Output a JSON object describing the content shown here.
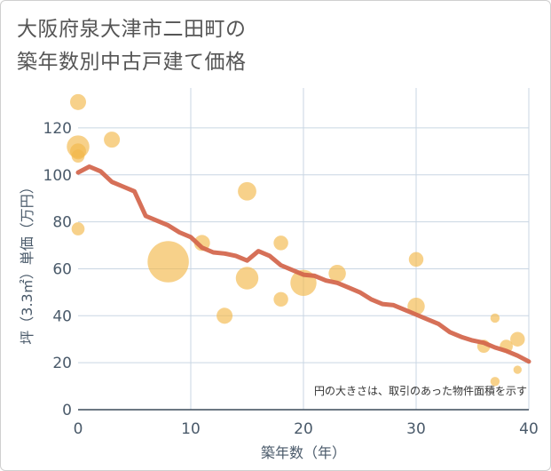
{
  "title": {
    "line1": "大阪府泉大津市二田町の",
    "line2": "築年数別中古戸建て価格"
  },
  "chart_data": {
    "type": "scatter",
    "title": "大阪府泉大津市二田町の築年数別中古戸建て価格",
    "xlabel": "築年数（年）",
    "ylabel": "坪（3.3㎡）単価（万円）",
    "xlim": [
      0,
      40
    ],
    "ylim": [
      0,
      137
    ],
    "xticks": [
      0,
      10,
      20,
      30,
      40
    ],
    "yticks": [
      0,
      20,
      40,
      60,
      80,
      100,
      120
    ],
    "grid": true,
    "annotation": "円の大きさは、取引のあった物件面積を示す",
    "colors": {
      "bubble": "#f2b84b",
      "line": "#d2644a",
      "grid": "#c9d6e3",
      "axis_text": "#4a5a6a"
    },
    "scatter": [
      {
        "x": 0,
        "y": 131,
        "size": 3
      },
      {
        "x": 0,
        "y": 112,
        "size": 6
      },
      {
        "x": 0,
        "y": 110,
        "size": 3
      },
      {
        "x": 0,
        "y": 108,
        "size": 2
      },
      {
        "x": 0,
        "y": 77,
        "size": 2
      },
      {
        "x": 3,
        "y": 115,
        "size": 3
      },
      {
        "x": 8,
        "y": 63,
        "size": 20
      },
      {
        "x": 11,
        "y": 71,
        "size": 3
      },
      {
        "x": 13,
        "y": 40,
        "size": 3
      },
      {
        "x": 15,
        "y": 93,
        "size": 4
      },
      {
        "x": 15,
        "y": 56,
        "size": 6
      },
      {
        "x": 18,
        "y": 71,
        "size": 2.5
      },
      {
        "x": 18,
        "y": 47,
        "size": 2.5
      },
      {
        "x": 20,
        "y": 54,
        "size": 8
      },
      {
        "x": 23,
        "y": 58,
        "size": 3.5
      },
      {
        "x": 30,
        "y": 64,
        "size": 2.5
      },
      {
        "x": 30,
        "y": 44,
        "size": 3.5
      },
      {
        "x": 36,
        "y": 27,
        "size": 2
      },
      {
        "x": 37,
        "y": 39,
        "size": 1
      },
      {
        "x": 37,
        "y": 12,
        "size": 1
      },
      {
        "x": 38,
        "y": 27,
        "size": 2
      },
      {
        "x": 39,
        "y": 30,
        "size": 2.5
      },
      {
        "x": 39,
        "y": 17,
        "size": 0.8
      }
    ],
    "trend": {
      "x": [
        0,
        1,
        2,
        3,
        4,
        5,
        6,
        7,
        8,
        9,
        10,
        11,
        12,
        13,
        14,
        15,
        16,
        17,
        18,
        19,
        20,
        21,
        22,
        23,
        24,
        25,
        26,
        27,
        28,
        29,
        30,
        31,
        32,
        33,
        34,
        35,
        36,
        37,
        38,
        39,
        40
      ],
      "y": [
        101,
        103.5,
        101.5,
        97,
        95,
        93,
        82.5,
        80.5,
        78.5,
        75.5,
        73.5,
        69,
        67,
        66.5,
        65.5,
        63.5,
        67.5,
        65.5,
        61.5,
        59.5,
        57.5,
        57,
        55,
        54,
        52,
        50,
        47,
        45,
        44.5,
        42.5,
        40.5,
        38.5,
        36.5,
        33,
        31,
        29.5,
        28.5,
        26.5,
        25,
        23,
        20.5
      ]
    }
  }
}
